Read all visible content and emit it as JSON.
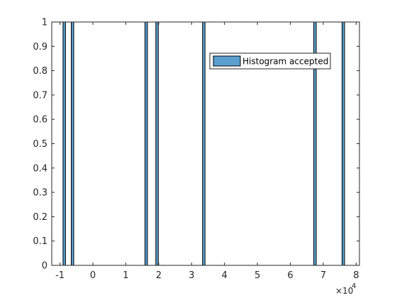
{
  "chart_data": {
    "type": "bar",
    "title": "",
    "xlabel": "",
    "ylabel": "",
    "xlim": [
      -12500,
      81000
    ],
    "ylim": [
      0,
      1
    ],
    "x_ticks": [
      -10000,
      0,
      10000,
      20000,
      30000,
      40000,
      50000,
      60000,
      70000,
      80000
    ],
    "x_tick_labels": [
      "-1",
      "0",
      "1",
      "2",
      "3",
      "4",
      "5",
      "6",
      "7",
      "8"
    ],
    "x_exponent_label": "×10",
    "x_exponent_power": "4",
    "y_ticks": [
      0,
      0.1,
      0.2,
      0.3,
      0.4,
      0.5,
      0.6,
      0.7,
      0.8,
      0.9,
      1
    ],
    "y_tick_labels": [
      "0",
      "0.1",
      "0.2",
      "0.3",
      "0.4",
      "0.5",
      "0.6",
      "0.7",
      "0.8",
      "0.9",
      "1"
    ],
    "grid": false,
    "legend_placement": "top-right",
    "bar_width": 750,
    "series": [
      {
        "name": "Histogram accepted",
        "color": "#5b9fd0",
        "edge_color": "#000000",
        "bars": [
          {
            "x": -8700,
            "value": 1
          },
          {
            "x": -6200,
            "value": 1
          },
          {
            "x": 16200,
            "value": 1
          },
          {
            "x": 19500,
            "value": 1
          },
          {
            "x": 33700,
            "value": 1
          },
          {
            "x": 67500,
            "value": 1
          },
          {
            "x": 76100,
            "value": 1
          }
        ]
      }
    ]
  }
}
